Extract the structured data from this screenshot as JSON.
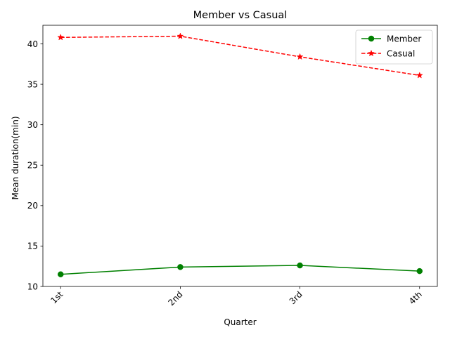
{
  "chart_data": {
    "type": "line",
    "title": "Member vs Casual",
    "xlabel": "Quarter",
    "ylabel": "Mean duration(min)",
    "categories": [
      "1st",
      "2nd",
      "3rd",
      "4th"
    ],
    "ylim": [
      10,
      42.3
    ],
    "yticks": [
      10,
      15,
      20,
      25,
      30,
      35,
      40
    ],
    "grid": false,
    "legend_position": "top-right",
    "series": [
      {
        "name": "Member",
        "values": [
          11.5,
          12.4,
          12.6,
          11.9
        ],
        "color": "#008000",
        "line_style": "solid",
        "marker": "circle"
      },
      {
        "name": "Casual",
        "values": [
          40.8,
          40.95,
          38.4,
          36.1
        ],
        "color": "#ff0000",
        "line_style": "dashed",
        "marker": "star"
      }
    ]
  }
}
